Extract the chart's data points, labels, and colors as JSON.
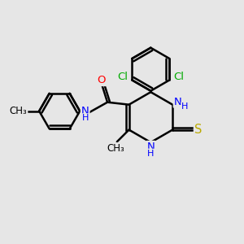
{
  "bg_color": "#e6e6e6",
  "bond_color": "#000000",
  "bond_width": 1.8,
  "atom_colors": {
    "N": "#0000ff",
    "O": "#ff0000",
    "S": "#bbaa00",
    "Cl": "#00aa00",
    "C": "#000000",
    "H": "#0000ff"
  },
  "font_size": 9.5,
  "figsize": [
    3.0,
    3.0
  ],
  "dpi": 100,
  "xlim": [
    0,
    10
  ],
  "ylim": [
    0,
    10
  ]
}
